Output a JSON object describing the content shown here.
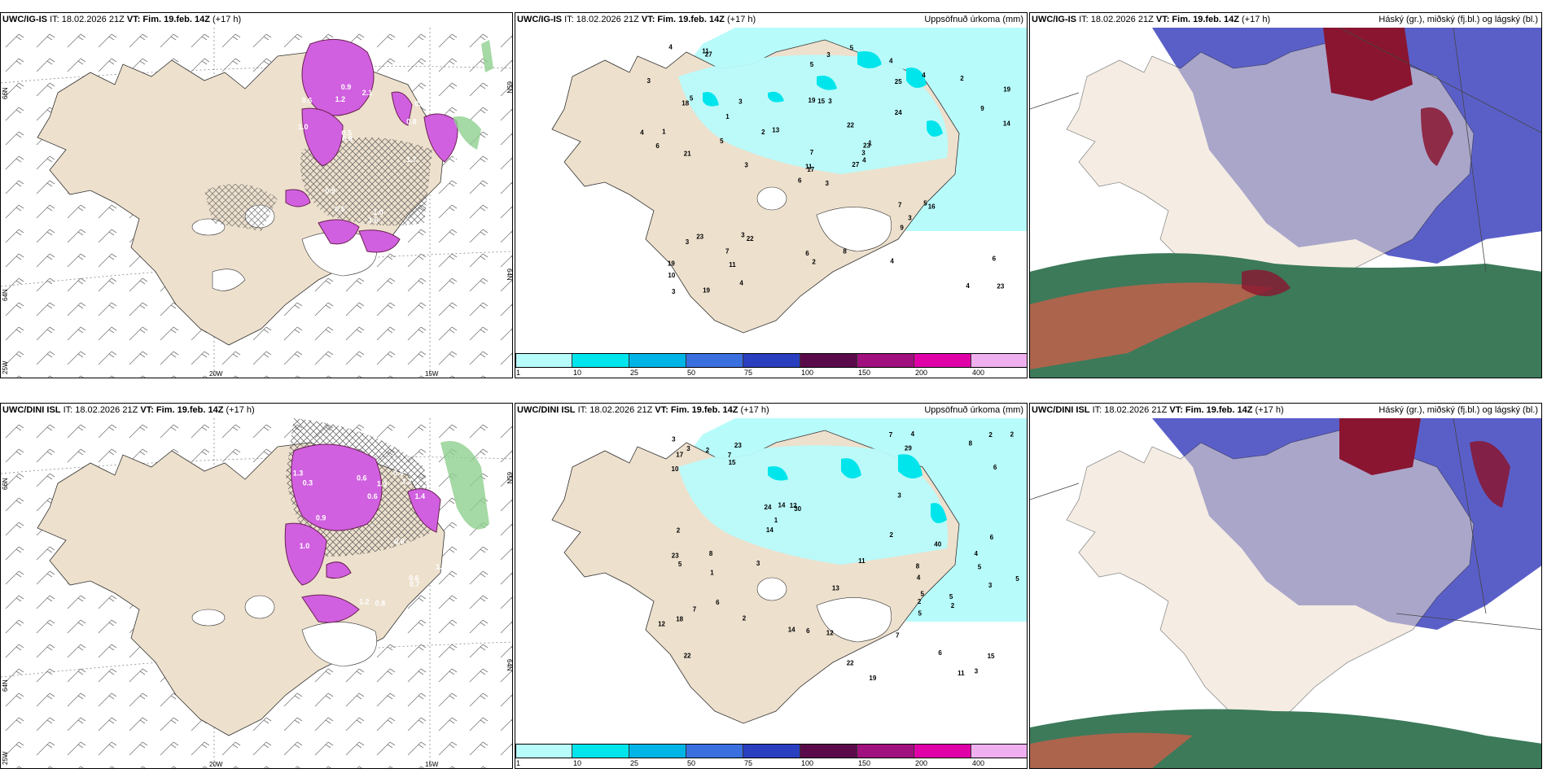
{
  "rows": [
    {
      "model": "UWC/IG-IS",
      "it": "IT: 18.02.2026 21Z",
      "vt_label": "VT:",
      "vt_value": "Fim. 19.feb. 14Z",
      "lead": "(+17 h)"
    },
    {
      "model": "UWC/DINI ISL",
      "it": "IT: 18.02.2026 21Z",
      "vt_label": "VT:",
      "vt_value": "Fim. 19.feb. 14Z",
      "lead": "(+17 h)"
    }
  ],
  "panel_titles": {
    "precip": "Uppsöfnuð úrkoma (mm)",
    "cloud": "Háský (gr.), miðský (fj.bl.) og lágský (bl.)"
  },
  "axis_labels": {
    "lat66": "66N",
    "lat64": "64N",
    "lat65r": "65N",
    "lat64r": "64N",
    "lon25": "25W",
    "lon20": "20W",
    "lon15": "15W"
  },
  "colorbar": {
    "ticks": [
      "1",
      "10",
      "25",
      "50",
      "75",
      "100",
      "150",
      "200",
      "400"
    ],
    "colors": [
      "#b8fbfb",
      "#00e5ec",
      "#00b5e6",
      "#3a6fe0",
      "#2a3fc0",
      "#5a0a4a",
      "#a0107e",
      "#e000a8",
      "#f0b0f0"
    ]
  },
  "precip_labels": {
    "top": [
      "3",
      "18",
      "17",
      "19",
      "23",
      "22",
      "4",
      "3",
      "25",
      "27",
      "27",
      "23",
      "21",
      "19",
      "6",
      "24",
      "19",
      "19",
      "22",
      "23",
      "13",
      "10",
      "11",
      "15",
      "1",
      "16",
      "5",
      "5",
      "6",
      "7",
      "14",
      "11",
      "6",
      "7",
      "3",
      "4",
      "3",
      "4",
      "6",
      "5",
      "5",
      "2",
      "5",
      "9",
      "4",
      "4",
      "3",
      "3",
      "2",
      "4",
      "3",
      "9",
      "3",
      "3",
      "4",
      "7",
      "11",
      "4",
      "8",
      "2",
      "3",
      "3",
      "1",
      "1"
    ],
    "bottom": [
      "4",
      "5",
      "22",
      "23",
      "30",
      "6",
      "18",
      "29",
      "24",
      "19",
      "10",
      "23",
      "17",
      "15",
      "14",
      "6",
      "13",
      "11",
      "12",
      "6",
      "2",
      "8",
      "14",
      "3",
      "7",
      "7",
      "5",
      "5",
      "15",
      "40",
      "22",
      "7",
      "1",
      "3",
      "4",
      "2",
      "2",
      "8",
      "12",
      "7",
      "6",
      "4",
      "3",
      "6",
      "5",
      "2",
      "12",
      "3",
      "2",
      "2",
      "5",
      "14",
      "2",
      "8",
      "5",
      "11",
      "3",
      "3",
      "1",
      "2"
    ]
  },
  "wind_labels_top": [
    "0.6",
    "1.2",
    "0.8",
    "1.0",
    "1.3",
    "1.6",
    "1.7",
    "0.9",
    "1.2",
    "1.0",
    "1.8",
    "0.9",
    "0.8",
    "0.9",
    "1.0",
    "0.5",
    "0.5",
    "2.1"
  ],
  "wind_labels_bottom": [
    "0.6",
    "0.7",
    "1.3",
    "1.4",
    "1.2",
    "0.6",
    "0.8",
    "0.4",
    "0.9",
    "1.0",
    "0.6",
    "1.3",
    "0.9",
    "0.3",
    "1.1",
    "1.2",
    "1.0"
  ]
}
